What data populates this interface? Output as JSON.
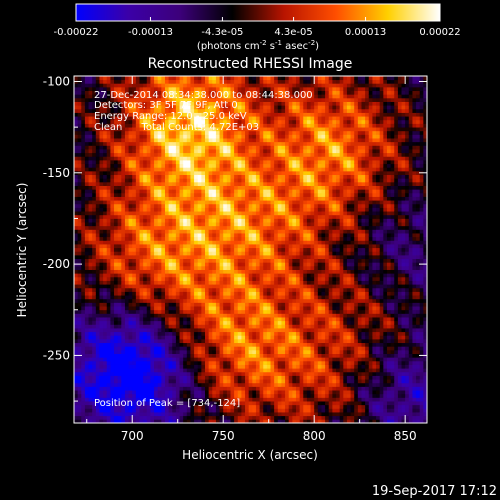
{
  "chart_data": {
    "type": "heatmap",
    "title": "Reconstructed RHESSI Image",
    "xlabel": "Heliocentric X (arcsec)",
    "ylabel": "Heliocentric Y (arcsec)",
    "xlim": [
      668,
      862
    ],
    "ylim": [
      -287,
      -97
    ],
    "x_ticks": [
      700,
      750,
      800,
      850
    ],
    "y_ticks": [
      -100,
      -150,
      -200,
      -250
    ],
    "colorbar": {
      "ticks": [
        "-0.00022",
        "-0.00013",
        "-4.3e-05",
        "4.3e-05",
        "0.00013",
        "0.00022"
      ],
      "tick_values": [
        -0.00022,
        -0.00013,
        -4.3e-05,
        4.3e-05,
        0.00013,
        0.00022
      ],
      "range": [
        -0.00022,
        0.00022
      ],
      "colormap": [
        "#0000ff",
        "#3b00a8",
        "#3c007a",
        "#000000",
        "#b81400",
        "#ff4e00",
        "#ffd000",
        "#ffffff"
      ],
      "unit_prefix": "(photons cm",
      "unit_exp1": "-2",
      "unit_mid": " s",
      "unit_exp2": "-1",
      "unit_mid2": " asec",
      "unit_exp3": "-2",
      "unit_suffix": ")"
    },
    "sources": [
      {
        "x": 734,
        "y": -124,
        "amp": 0.00022
      },
      {
        "x": 805,
        "y": -135,
        "amp": 0.00017
      },
      {
        "x": 712,
        "y": -195,
        "amp": 0.00013
      },
      {
        "x": 765,
        "y": -175,
        "amp": 0.00012
      },
      {
        "x": 760,
        "y": -245,
        "amp": 0.00014
      },
      {
        "x": 840,
        "y": -215,
        "amp": 8e-05
      },
      {
        "x": 815,
        "y": -262,
        "amp": 8e-05
      }
    ],
    "negative_regions": [
      {
        "x": 700,
        "y": -258,
        "amp": -0.00022
      },
      {
        "x": 850,
        "y": -270,
        "amp": -0.00012
      },
      {
        "x": 850,
        "y": -200,
        "amp": -0.0001
      },
      {
        "x": 770,
        "y": -135,
        "amp": -8e-05
      }
    ],
    "annotations": [
      "27-Dec-2014 08:34:38.000 to 08:44:38.000",
      "Detectors: 3F 5F 7F 9F, Att 0",
      "Energy Range: 12.0 - 25.0 keV",
      "Clean      Total Counts: 4.72E+03"
    ],
    "peak_label": "Position of Peak = [734,-124]",
    "footer": "19-Sep-2017 17:12"
  }
}
